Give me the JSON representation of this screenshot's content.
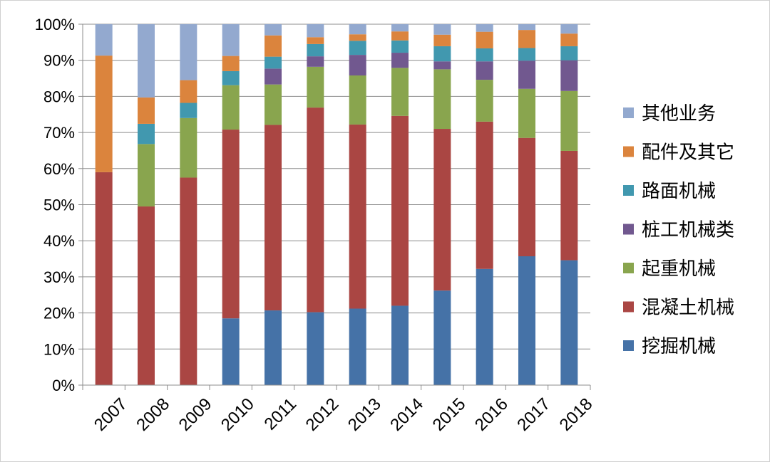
{
  "chart_data": {
    "type": "bar",
    "stacked": true,
    "categories": [
      "2007",
      "2008",
      "2009",
      "2010",
      "2011",
      "2012",
      "2013",
      "2014",
      "2015",
      "2016",
      "2017",
      "2018"
    ],
    "ylim": [
      0,
      100
    ],
    "yticks": [
      "0%",
      "10%",
      "20%",
      "30%",
      "40%",
      "50%",
      "60%",
      "70%",
      "80%",
      "90%",
      "100%"
    ],
    "grid": true,
    "legend_position": "right",
    "series": [
      {
        "name": "挖掘机械",
        "color": "#4572A7",
        "values": [
          0,
          0,
          0,
          18.5,
          20.7,
          20.2,
          21.2,
          22.0,
          26.2,
          32.2,
          35.7,
          34.6
        ]
      },
      {
        "name": "混凝土机械",
        "color": "#AA4643",
        "values": [
          59.0,
          49.5,
          57.5,
          52.3,
          51.4,
          56.7,
          51.0,
          52.6,
          44.8,
          40.8,
          32.8,
          30.3
        ]
      },
      {
        "name": "起重机械",
        "color": "#89A54E",
        "values": [
          0,
          17.3,
          16.5,
          12.3,
          11.2,
          11.3,
          13.6,
          13.3,
          16.5,
          11.6,
          13.6,
          16.6
        ]
      },
      {
        "name": "桩工机械类",
        "color": "#71588F",
        "values": [
          0,
          0,
          0,
          0,
          4.4,
          2.9,
          5.7,
          4.2,
          2.2,
          5.1,
          7.8,
          8.5
        ]
      },
      {
        "name": "路面机械",
        "color": "#4198AF",
        "values": [
          0,
          5.6,
          4.2,
          3.9,
          3.3,
          3.4,
          3.9,
          3.4,
          4.2,
          3.6,
          3.5,
          3.9
        ]
      },
      {
        "name": "配件及其它",
        "color": "#DB843D",
        "values": [
          32.3,
          7.3,
          6.3,
          4.2,
          5.9,
          1.9,
          1.8,
          2.5,
          3.2,
          4.6,
          5.0,
          3.5
        ]
      },
      {
        "name": "其他业务",
        "color": "#93A9CF",
        "values": [
          8.7,
          20.3,
          15.5,
          8.8,
          3.1,
          3.6,
          2.8,
          2.0,
          2.9,
          2.1,
          1.6,
          2.6
        ]
      }
    ]
  }
}
